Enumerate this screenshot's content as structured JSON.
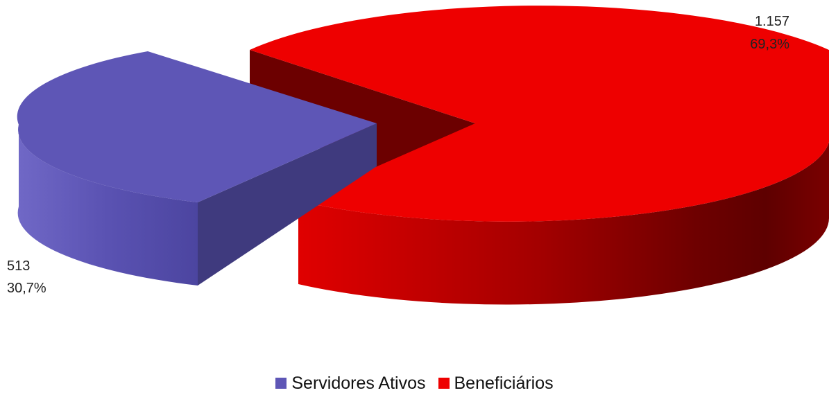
{
  "chart_data": {
    "type": "pie",
    "variant": "3d-exploded",
    "title": "",
    "labels": [
      "Servidores Ativos",
      "Beneficiários"
    ],
    "values": [
      513,
      1157
    ],
    "value_labels": [
      "513",
      "1.157"
    ],
    "percent_labels": [
      "30,7%",
      "69,3%"
    ],
    "colors": [
      "#5e56b6",
      "#ee0000"
    ],
    "legend_position": "bottom"
  }
}
